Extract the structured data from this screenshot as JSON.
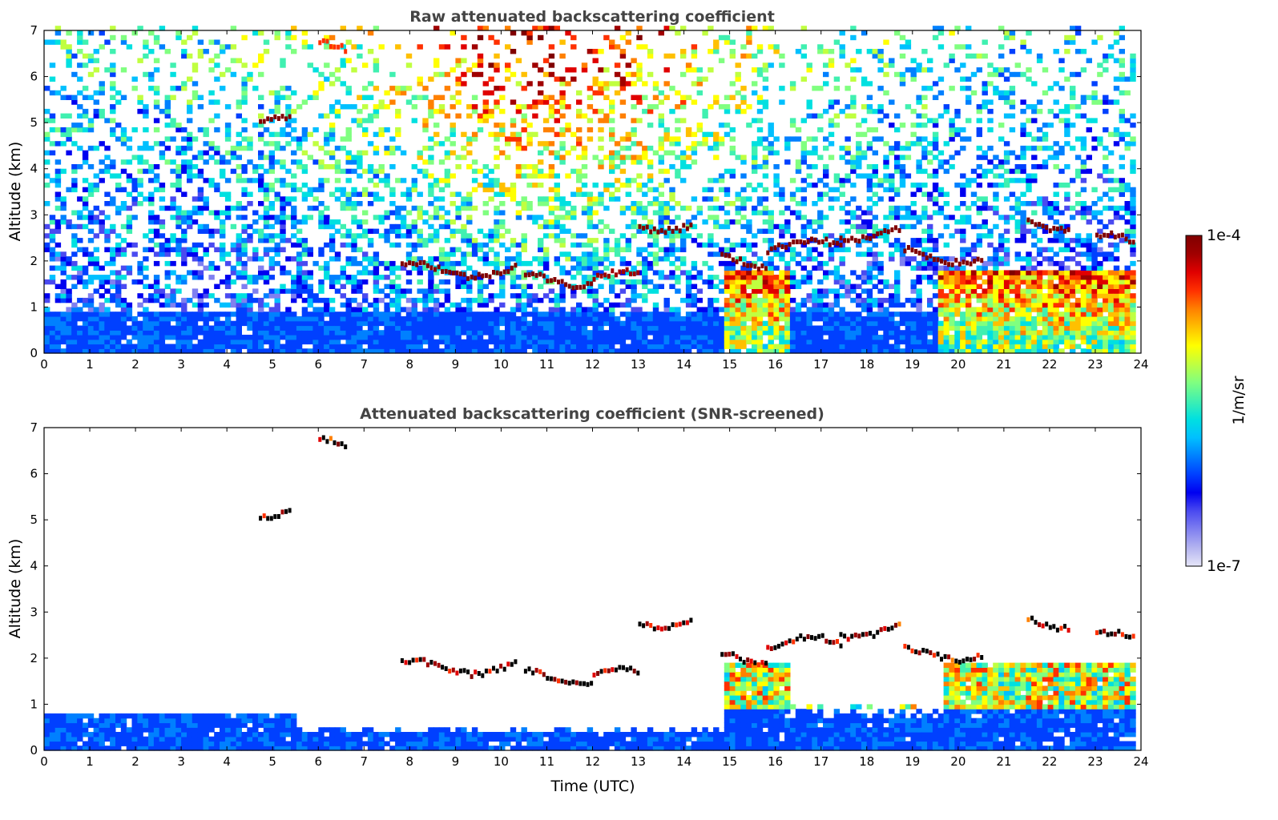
{
  "chart_data": [
    {
      "type": "heatmap",
      "title": "Raw attenuated backscattering coefficient",
      "ylabel": "Altitude (km)",
      "xlabel": "",
      "xlim": [
        0,
        24
      ],
      "ylim": [
        0,
        7
      ],
      "xticks": [
        "0",
        "1",
        "2",
        "3",
        "4",
        "5",
        "6",
        "7",
        "8",
        "9",
        "10",
        "11",
        "12",
        "13",
        "14",
        "15",
        "16",
        "17",
        "18",
        "19",
        "20",
        "21",
        "22",
        "23",
        "24"
      ],
      "yticks": [
        "0",
        "1",
        "2",
        "3",
        "4",
        "5",
        "6",
        "7"
      ],
      "features": [
        {
          "t0": 4.7,
          "t1": 5.4,
          "z": 5.2,
          "level": 1.0
        },
        {
          "t0": 6.0,
          "t1": 6.6,
          "z": 6.65,
          "level": 0.85
        },
        {
          "t0": 7.8,
          "t1": 10.3,
          "z": 1.8,
          "level": 1.0
        },
        {
          "t0": 10.5,
          "t1": 12.0,
          "z": 1.6,
          "level": 1.0
        },
        {
          "t0": 12.0,
          "t1": 13.0,
          "z": 1.6,
          "level": 0.95
        },
        {
          "t0": 13.0,
          "t1": 14.2,
          "z": 2.8,
          "level": 1.0
        },
        {
          "t0": 14.8,
          "t1": 15.8,
          "z": 2.0,
          "level": 1.0
        },
        {
          "t0": 15.8,
          "t1": 17.4,
          "z": 2.3,
          "level": 1.0
        },
        {
          "t0": 17.4,
          "t1": 18.7,
          "z": 2.6,
          "level": 1.0
        },
        {
          "t0": 18.8,
          "t1": 20.5,
          "z": 2.1,
          "level": 1.0
        },
        {
          "t0": 21.5,
          "t1": 22.4,
          "z": 2.8,
          "level": 1.0
        },
        {
          "t0": 23.0,
          "t1": 23.8,
          "z": 2.4,
          "level": 1.0
        }
      ]
    },
    {
      "type": "heatmap",
      "title": "Attenuated backscattering coefficient (SNR-screened)",
      "ylabel": "Altitude (km)",
      "xlabel": "Time (UTC)",
      "xlim": [
        0,
        24
      ],
      "ylim": [
        0,
        7
      ],
      "xticks": [
        "0",
        "1",
        "2",
        "3",
        "4",
        "5",
        "6",
        "7",
        "8",
        "9",
        "10",
        "11",
        "12",
        "13",
        "14",
        "15",
        "16",
        "17",
        "18",
        "19",
        "20",
        "21",
        "22",
        "23",
        "24"
      ],
      "yticks": [
        "0",
        "1",
        "2",
        "3",
        "4",
        "5",
        "6",
        "7"
      ]
    }
  ],
  "colorbar": {
    "max_label": "1e-4",
    "min_label": "1e-7",
    "unit_label": "1/m/sr",
    "colors": [
      "#e6e6f8",
      "#b4b4f0",
      "#8080f0",
      "#4a4af0",
      "#0000f0",
      "#0040ff",
      "#0080ff",
      "#00c0ff",
      "#00e0e0",
      "#40f0b0",
      "#80ff80",
      "#c0ff40",
      "#ffff00",
      "#ffc000",
      "#ff8000",
      "#ff3000",
      "#e00000",
      "#a00000",
      "#800000"
    ]
  }
}
